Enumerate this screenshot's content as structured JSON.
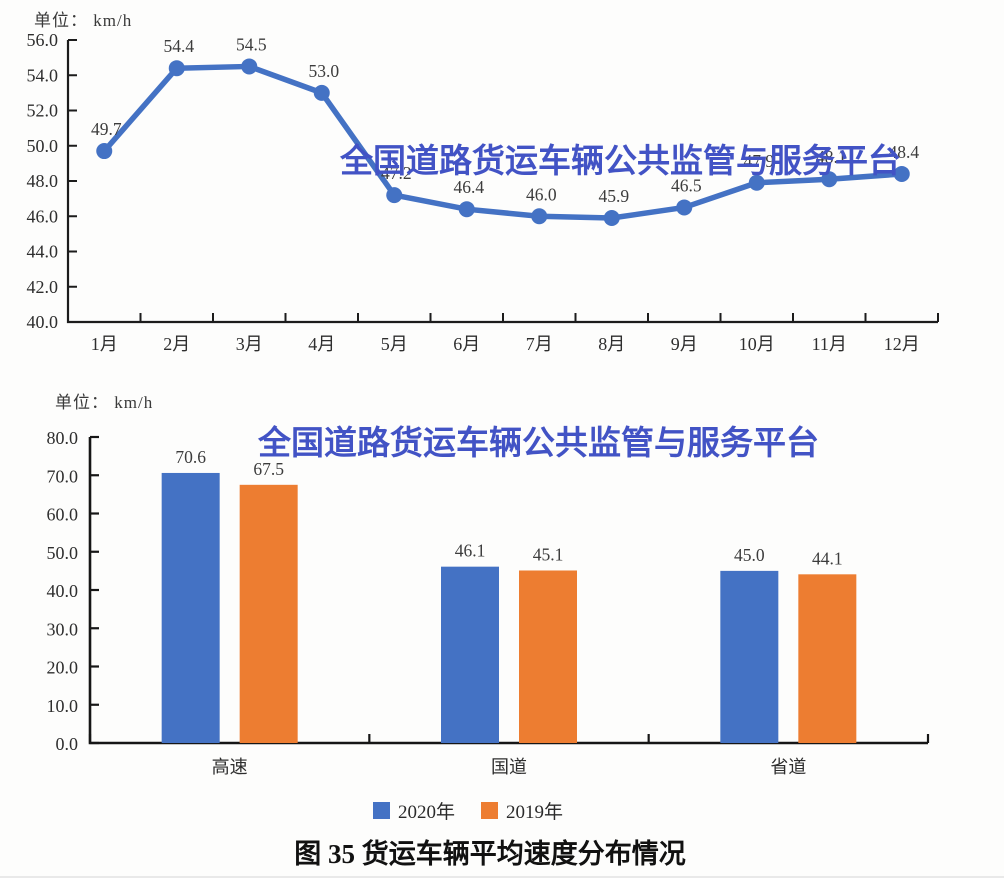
{
  "watermark": {
    "text": "全国道路货运车辆公共监管与服务平台",
    "color": "#4253C5"
  },
  "caption": "图 35  货运车辆平均速度分布情况",
  "chart_data": [
    {
      "type": "line",
      "unit_label": "单位： km/h",
      "categories": [
        "1月",
        "2月",
        "3月",
        "4月",
        "5月",
        "6月",
        "7月",
        "8月",
        "9月",
        "10月",
        "11月",
        "12月"
      ],
      "values": [
        49.7,
        54.4,
        54.5,
        53.0,
        47.2,
        46.4,
        46.0,
        45.9,
        46.5,
        47.9,
        48.1,
        48.4
      ],
      "ylim": [
        40.0,
        56.0
      ],
      "ytick_step": 2.0,
      "line_color": "#4472C4",
      "grid": false
    },
    {
      "type": "bar",
      "unit_label": "单位： km/h",
      "categories": [
        "高速",
        "国道",
        "省道"
      ],
      "series": [
        {
          "name": "2020年",
          "color": "#4472C4",
          "values": [
            70.6,
            46.1,
            45.0
          ]
        },
        {
          "name": "2019年",
          "color": "#ED7D31",
          "values": [
            67.5,
            45.1,
            44.1
          ]
        }
      ],
      "ylim": [
        0.0,
        80.0
      ],
      "ytick_step": 10.0,
      "legend_position": "bottom",
      "grid": false
    }
  ]
}
